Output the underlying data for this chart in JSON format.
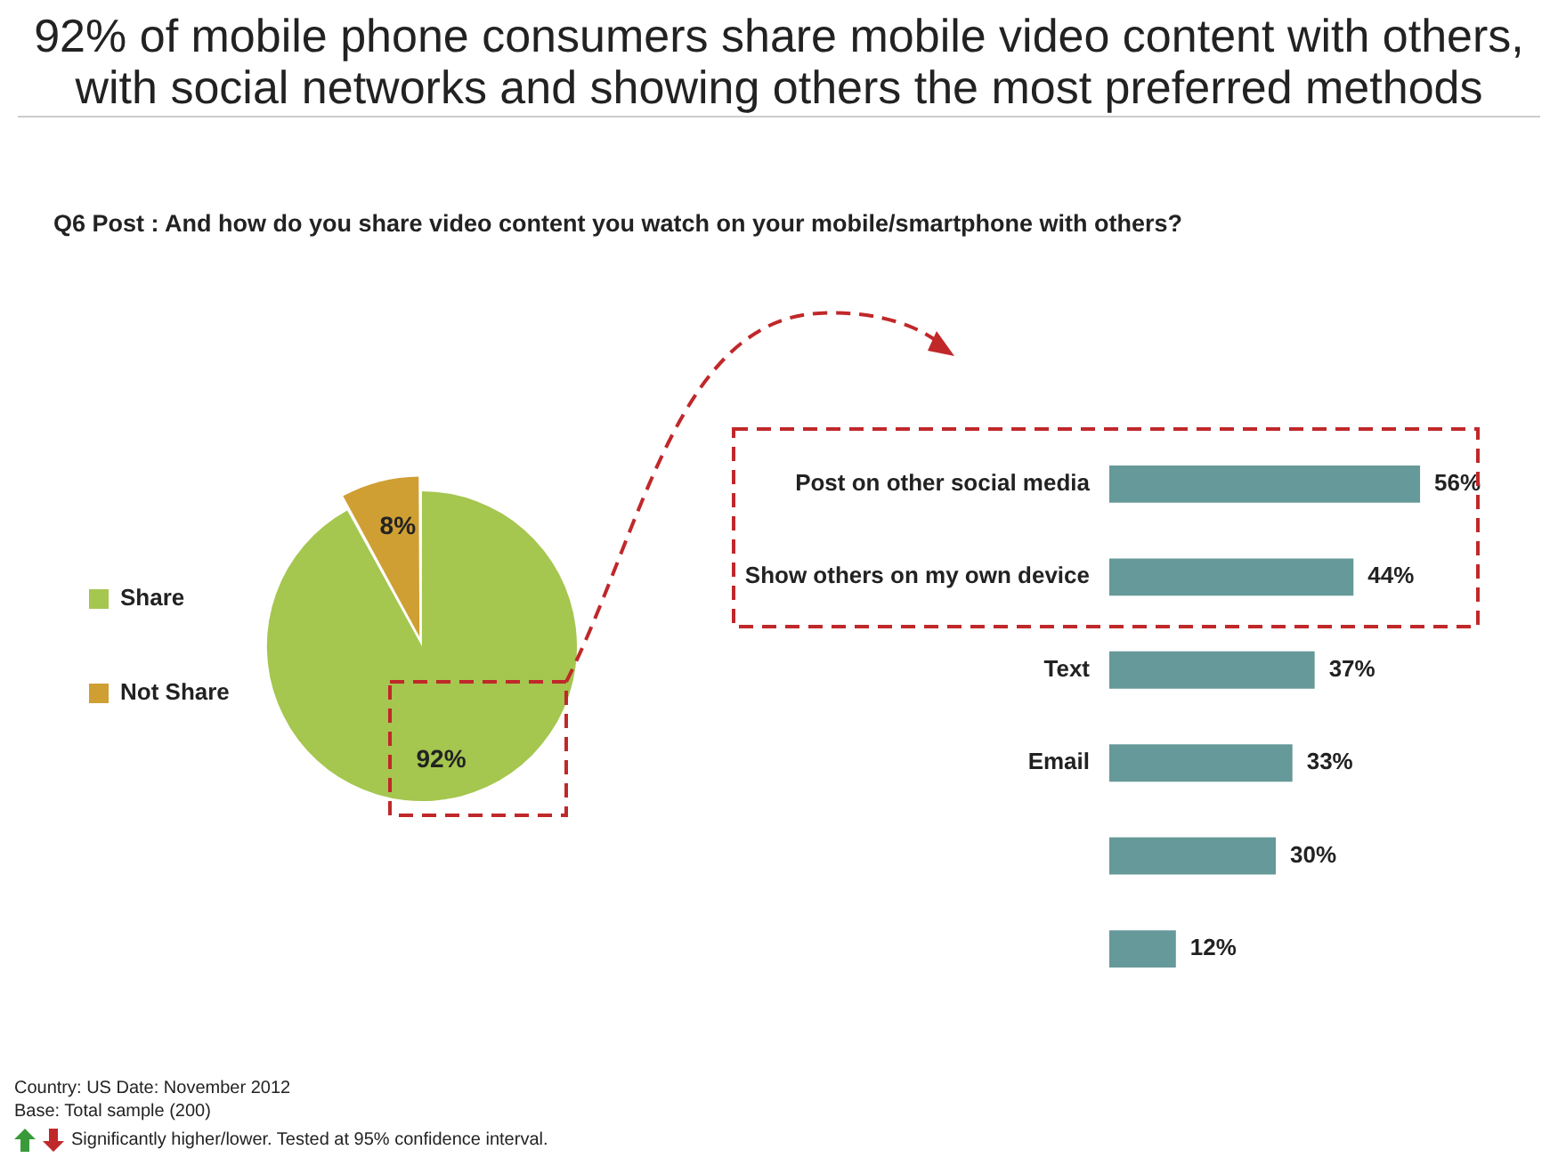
{
  "chart_data": [
    {
      "type": "pie",
      "title": "92% of mobile phone consumers share mobile video content with others, with social networks and showing others the most preferred methods",
      "subtitle": "Q6 Post : And how do you share video content you watch on your mobile/smartphone with others?",
      "categories": [
        "Share",
        "Not Share"
      ],
      "values": [
        92,
        8
      ],
      "colors": [
        "#a5c64f",
        "#cf9f33"
      ],
      "legend": "left",
      "value_labels": [
        "92%",
        "8%"
      ],
      "annotations": [
        "Country: US Date: November  2012",
        "Base: Total sample (200)",
        "Significantly higher/lower. Tested at 95% confidence interval."
      ]
    },
    {
      "type": "bar",
      "orientation": "horizontal",
      "categories": [
        "Post on other social media",
        "Show others on my own device",
        "Text",
        "Email",
        null,
        null
      ],
      "values": [
        56,
        44,
        37,
        33,
        30,
        12
      ],
      "color": "#669999",
      "value_labels": [
        "56%",
        "44%",
        "37%",
        "33%",
        "30%",
        "12%"
      ],
      "legend": false
    }
  ]
}
